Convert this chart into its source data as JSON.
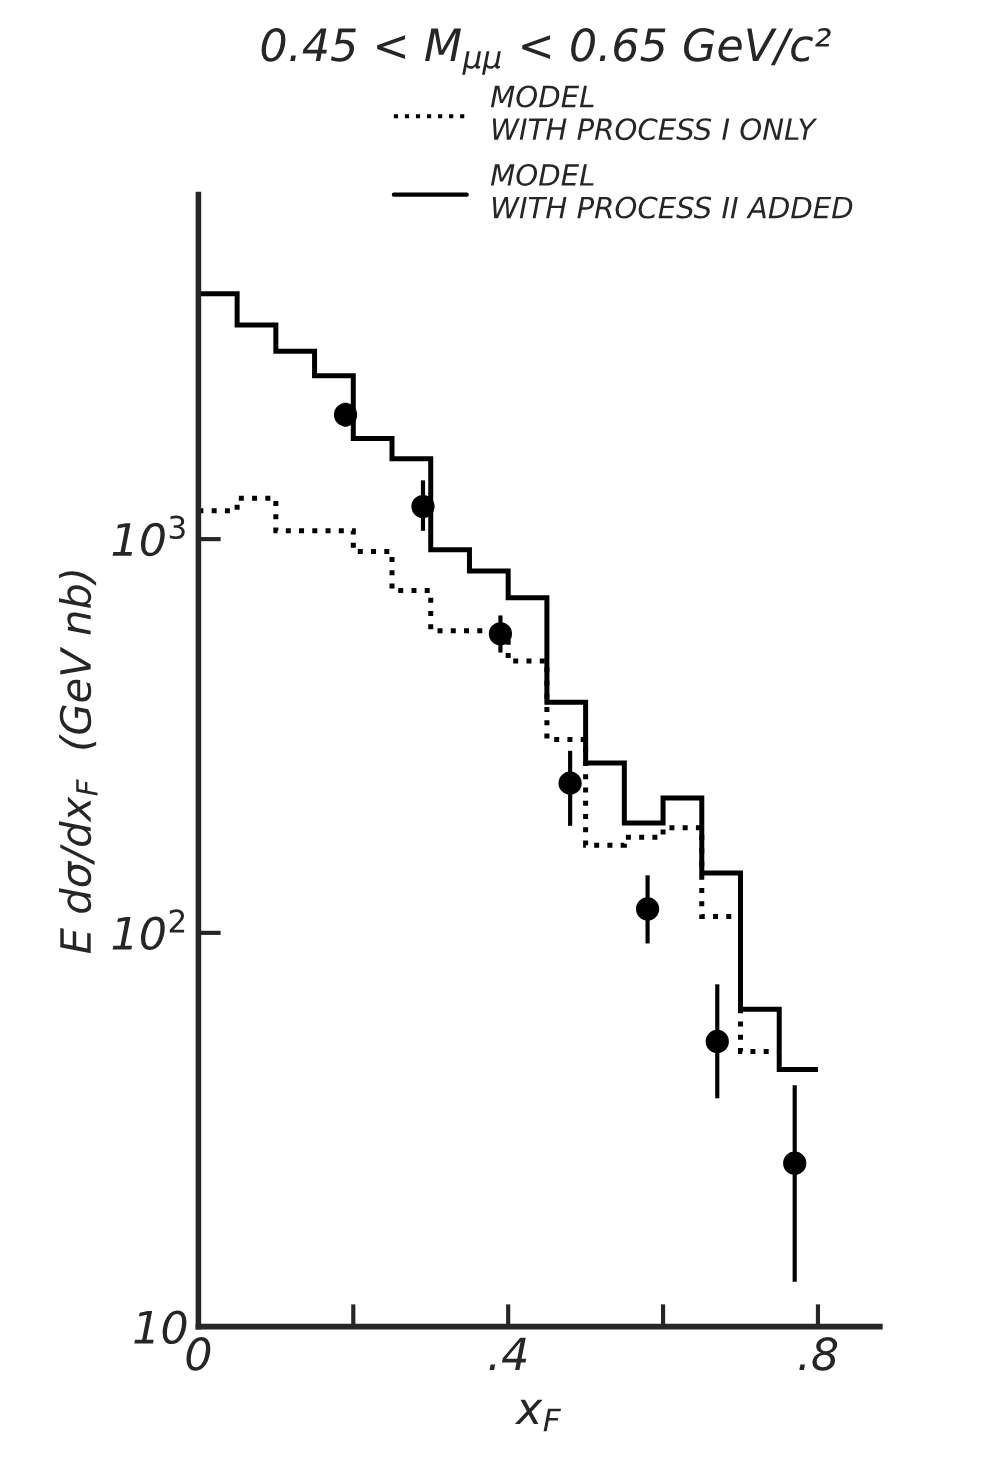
{
  "chart_data": {
    "type": "histogram",
    "title": "0.45 < M$_{μμ}$ < 0.65 GeV/c²",
    "xlabel": "x$_{F}$",
    "ylabel": "E dσ/dx$_{F}$  (GeV nb)",
    "bins": [
      0,
      0.05,
      0.1,
      0.15,
      0.2,
      0.25,
      0.3,
      0.35,
      0.4,
      0.45,
      0.5,
      0.55,
      0.6,
      0.65,
      0.7,
      0.75,
      0.8
    ],
    "series": [
      {
        "name": "MODEL\nWITH PROCESS I ONLY",
        "color": "#000000",
        "line_style": "dotted",
        "bins": [
          0,
          0.05,
          0.1,
          0.15,
          0.2,
          0.25,
          0.3,
          0.35,
          0.4,
          0.45,
          0.5,
          0.55,
          0.6,
          0.65,
          0.7,
          0.75
        ],
        "values": [
          1180,
          1270,
          1050,
          1050,
          930,
          740,
          585,
          585,
          490,
          310,
          167,
          175,
          185,
          110,
          50
        ]
      },
      {
        "name": "MODEL\nWITH PROCESS II ADDED",
        "color": "#000000",
        "line_style": "solid",
        "values": [
          4200,
          3500,
          3000,
          2600,
          1800,
          1600,
          940,
          830,
          710,
          385,
          270,
          190,
          220,
          142,
          64,
          45
        ]
      },
      {
        "type": "scatter",
        "color": "#000000",
        "marker": "circle",
        "x": [
          0.19,
          0.29,
          0.39,
          0.48,
          0.58,
          0.67,
          0.77
        ],
        "values": [
          2070,
          1210,
          575,
          240,
          115,
          53,
          26
        ],
        "errors": [
          [
            1930,
            2220
          ],
          [
            1050,
            1410
          ],
          [
            515,
            640
          ],
          [
            187,
            290
          ],
          [
            94,
            140
          ],
          [
            38,
            74
          ],
          [
            13,
            41
          ]
        ]
      }
    ],
    "log": "y",
    "xlim": [
      0,
      0.88
    ],
    "ylim": [
      10,
      7500
    ],
    "xticks": [
      0,
      {
        "value": 0.2,
        "label": null
      },
      {
        "value": 0.4,
        "label": ".4"
      },
      {
        "value": 0.6,
        "label": null
      },
      {
        "value": 0.8,
        "label": ".8"
      }
    ],
    "yticks": [
      10,
      {
        "value": 100,
        "label": "10$^{2}$"
      },
      {
        "value": 1000,
        "label": "10$^{3}$"
      }
    ],
    "grid": false,
    "legend": "top right"
  }
}
